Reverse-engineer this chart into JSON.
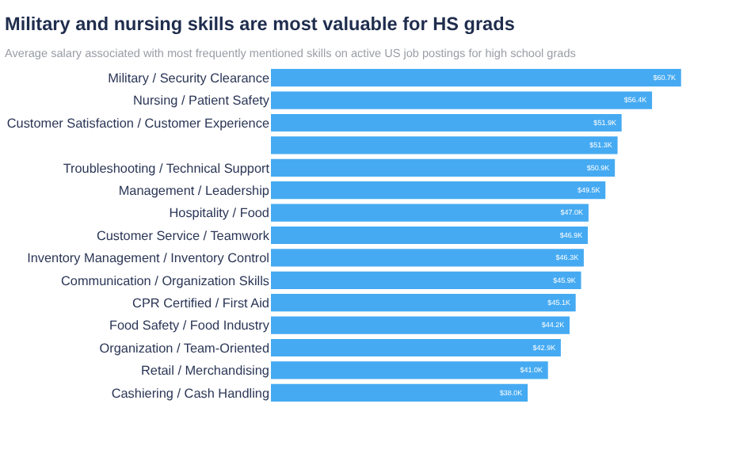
{
  "chart_data": {
    "type": "bar",
    "orientation": "horizontal",
    "title": "Military and nursing skills are most valuable for HS grads",
    "subtitle": "Average salary associated with most frequently mentioned skills on active US job postings for high school grads",
    "categories": [
      "Military / Security Clearance",
      "Nursing / Patient Safety",
      "Customer Satisfaction / Customer Experience",
      null,
      "Troubleshooting / Technical Support",
      "Management / Leadership",
      "Hospitality / Food",
      "Customer Service / Teamwork",
      "Inventory Management / Inventory Control",
      "Communication / Organization Skills",
      "CPR Certified / First Aid",
      "Food Safety / Food Industry",
      "Organization / Team-Oriented",
      "Retail / Merchandising",
      "Cashiering / Cash Handling"
    ],
    "values": [
      60.7,
      56.4,
      51.9,
      51.3,
      50.9,
      49.5,
      47.0,
      46.9,
      46.3,
      45.9,
      45.1,
      44.2,
      42.9,
      41.0,
      38.0
    ],
    "value_labels": [
      "$60.7K",
      "$56.4K",
      "$51.9K",
      "$51.3K",
      "$50.9K",
      "$49.5K",
      "$47.0K",
      "$46.9K",
      "$46.3K",
      "$45.9K",
      "$45.1K",
      "$44.2K",
      "$42.9K",
      "$41.0K",
      "$38.0K"
    ],
    "color": "#45aaf2",
    "tick_labels": "y"
  }
}
